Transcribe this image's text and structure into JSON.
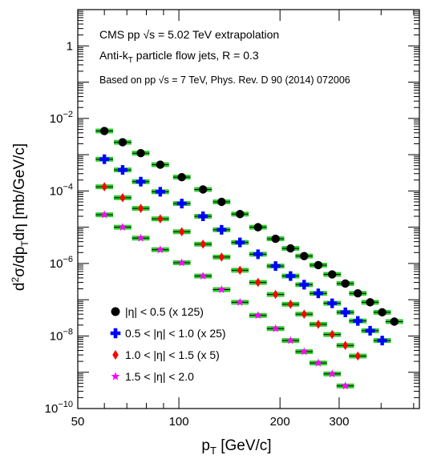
{
  "chart_data": {
    "type": "scatter",
    "title": "",
    "xlabel": {
      "main": "p",
      "sub": "T",
      "unit": " [GeV/c]"
    },
    "ylabel": {
      "parts": [
        "d",
        "2",
        "σ/dp",
        "T",
        "dη [mb/GeV/c]"
      ]
    },
    "xscale": "log",
    "yscale": "log",
    "xlim": [
      50,
      520
    ],
    "ylim": [
      1e-10,
      10
    ],
    "grid": false,
    "legend_position": "bottom-left",
    "x_tick_labels": [
      {
        "value": 50,
        "label": "50"
      },
      {
        "value": 100,
        "label": "100"
      },
      {
        "value": 200,
        "label": "200"
      },
      {
        "value": 300,
        "label": "300"
      }
    ],
    "y_tick_labels": [
      {
        "value": 1,
        "base": "1",
        "exp": ""
      },
      {
        "value": 0.01,
        "base": "10",
        "exp": "−2"
      },
      {
        "value": 0.0001,
        "base": "10",
        "exp": "−4"
      },
      {
        "value": 1e-06,
        "base": "10",
        "exp": "−6"
      },
      {
        "value": 1e-08,
        "base": "10",
        "exp": "−8"
      },
      {
        "value": 1e-10,
        "base": "10",
        "exp": "−10"
      }
    ],
    "annotations": [
      {
        "text_parts": [
          "CMS pp ",
          "√s",
          " = 5.02 TeV extrapolation"
        ]
      },
      {
        "text_parts": [
          "Anti-k",
          "T",
          " particle flow jets, R = 0.3"
        ]
      },
      {
        "text_parts": [
          "Based on pp ",
          "√s",
          " = 7 TeV, Phys. Rev. D 90 (2014) 072006"
        ]
      }
    ],
    "series": [
      {
        "name": "|η| < 0.5 (x 125)",
        "marker": "circle",
        "color": "#000000",
        "points": [
          [
            60,
            0.0045
          ],
          [
            68,
            0.0022
          ],
          [
            77,
            0.0011
          ],
          [
            88,
            0.00053
          ],
          [
            102,
            0.00024
          ],
          [
            118,
            0.00011
          ],
          [
            134,
            5e-05
          ],
          [
            152,
            2.3e-05
          ],
          [
            172,
            1e-05
          ],
          [
            194,
            4.8e-06
          ],
          [
            215,
            2.6e-06
          ],
          [
            236,
            1.6e-06
          ],
          [
            260,
            9e-07
          ],
          [
            286,
            5e-07
          ],
          [
            313,
            2.8e-07
          ],
          [
            341,
            1.5e-07
          ],
          [
            371,
            8.5e-08
          ],
          [
            403,
            4.5e-08
          ],
          [
            438,
            2.5e-08
          ]
        ]
      },
      {
        "name": "0.5 < |η| < 1.0 (x 25)",
        "marker": "cross",
        "color": "#0000ff",
        "points": [
          [
            60,
            0.00075
          ],
          [
            68,
            0.00038
          ],
          [
            77,
            0.00018
          ],
          [
            88,
            9.5e-05
          ],
          [
            102,
            4.5e-05
          ],
          [
            118,
            2e-05
          ],
          [
            134,
            8.5e-06
          ],
          [
            152,
            3.8e-06
          ],
          [
            172,
            1.8e-06
          ],
          [
            194,
            8.5e-07
          ],
          [
            215,
            4.5e-07
          ],
          [
            236,
            2.6e-07
          ],
          [
            260,
            1.5e-07
          ],
          [
            286,
            8e-08
          ],
          [
            313,
            4.5e-08
          ],
          [
            341,
            2.6e-08
          ],
          [
            371,
            1.4e-08
          ],
          [
            403,
            7.5e-09
          ]
        ]
      },
      {
        "name": "1.0 < |η| < 1.5 (x 5)",
        "marker": "diamond",
        "color": "#ff0000",
        "points": [
          [
            60,
            0.00013
          ],
          [
            68,
            6.5e-05
          ],
          [
            77,
            3.3e-05
          ],
          [
            88,
            1.7e-05
          ],
          [
            102,
            7.5e-06
          ],
          [
            118,
            3.4e-06
          ],
          [
            134,
            1.5e-06
          ],
          [
            152,
            6.5e-07
          ],
          [
            172,
            3e-07
          ],
          [
            194,
            1.4e-07
          ],
          [
            215,
            7.5e-08
          ],
          [
            236,
            4e-08
          ],
          [
            260,
            2.1e-08
          ],
          [
            286,
            1.1e-08
          ],
          [
            313,
            5.5e-09
          ],
          [
            341,
            2.8e-09
          ]
        ]
      },
      {
        "name": "1.5 < |η| < 2.0",
        "marker": "star",
        "color": "#ff00ff",
        "points": [
          [
            60,
            2.2e-05
          ],
          [
            68,
            1e-05
          ],
          [
            77,
            5e-06
          ],
          [
            88,
            2.4e-06
          ],
          [
            102,
            1.05e-06
          ],
          [
            118,
            4.5e-07
          ],
          [
            134,
            1.9e-07
          ],
          [
            152,
            8.5e-08
          ],
          [
            172,
            3.7e-08
          ],
          [
            194,
            1.6e-08
          ],
          [
            215,
            7.5e-09
          ],
          [
            236,
            3.7e-09
          ],
          [
            260,
            1.8e-09
          ],
          [
            286,
            9e-10
          ],
          [
            313,
            4.2e-10
          ]
        ]
      }
    ],
    "colors": {
      "syst_band": "#2ecc2e",
      "stat_bar": "#000000",
      "frame": "#000000"
    }
  }
}
